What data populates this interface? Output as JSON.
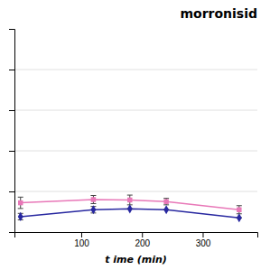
{
  "chart_data": {
    "type": "line",
    "title": "morronisid",
    "x_label": "t ime (min)",
    "x": [
      0,
      120,
      180,
      240,
      360
    ],
    "series": [
      {
        "color": "#e878b8",
        "marker": "square",
        "line_style": "solid",
        "values": [
          0.72,
          0.8,
          0.79,
          0.75,
          0.55
        ],
        "errors": [
          0.14,
          0.1,
          0.12,
          0.08,
          0.1
        ]
      },
      {
        "color": "#2828a0",
        "marker": "diamond",
        "line_style": "solid",
        "values": [
          0.38,
          0.55,
          0.57,
          0.55,
          0.35
        ],
        "errors": [
          0.08,
          0.08,
          0.0,
          0.0,
          0.0
        ]
      }
    ],
    "xlim": [
      -10,
      390
    ],
    "xticks": [
      100,
      200,
      300
    ],
    "ylim": [
      0.0,
      5.0
    ],
    "yticks": [
      1.0,
      2.0,
      3.0,
      4.0
    ],
    "grid": true,
    "tick_labels": "x"
  }
}
